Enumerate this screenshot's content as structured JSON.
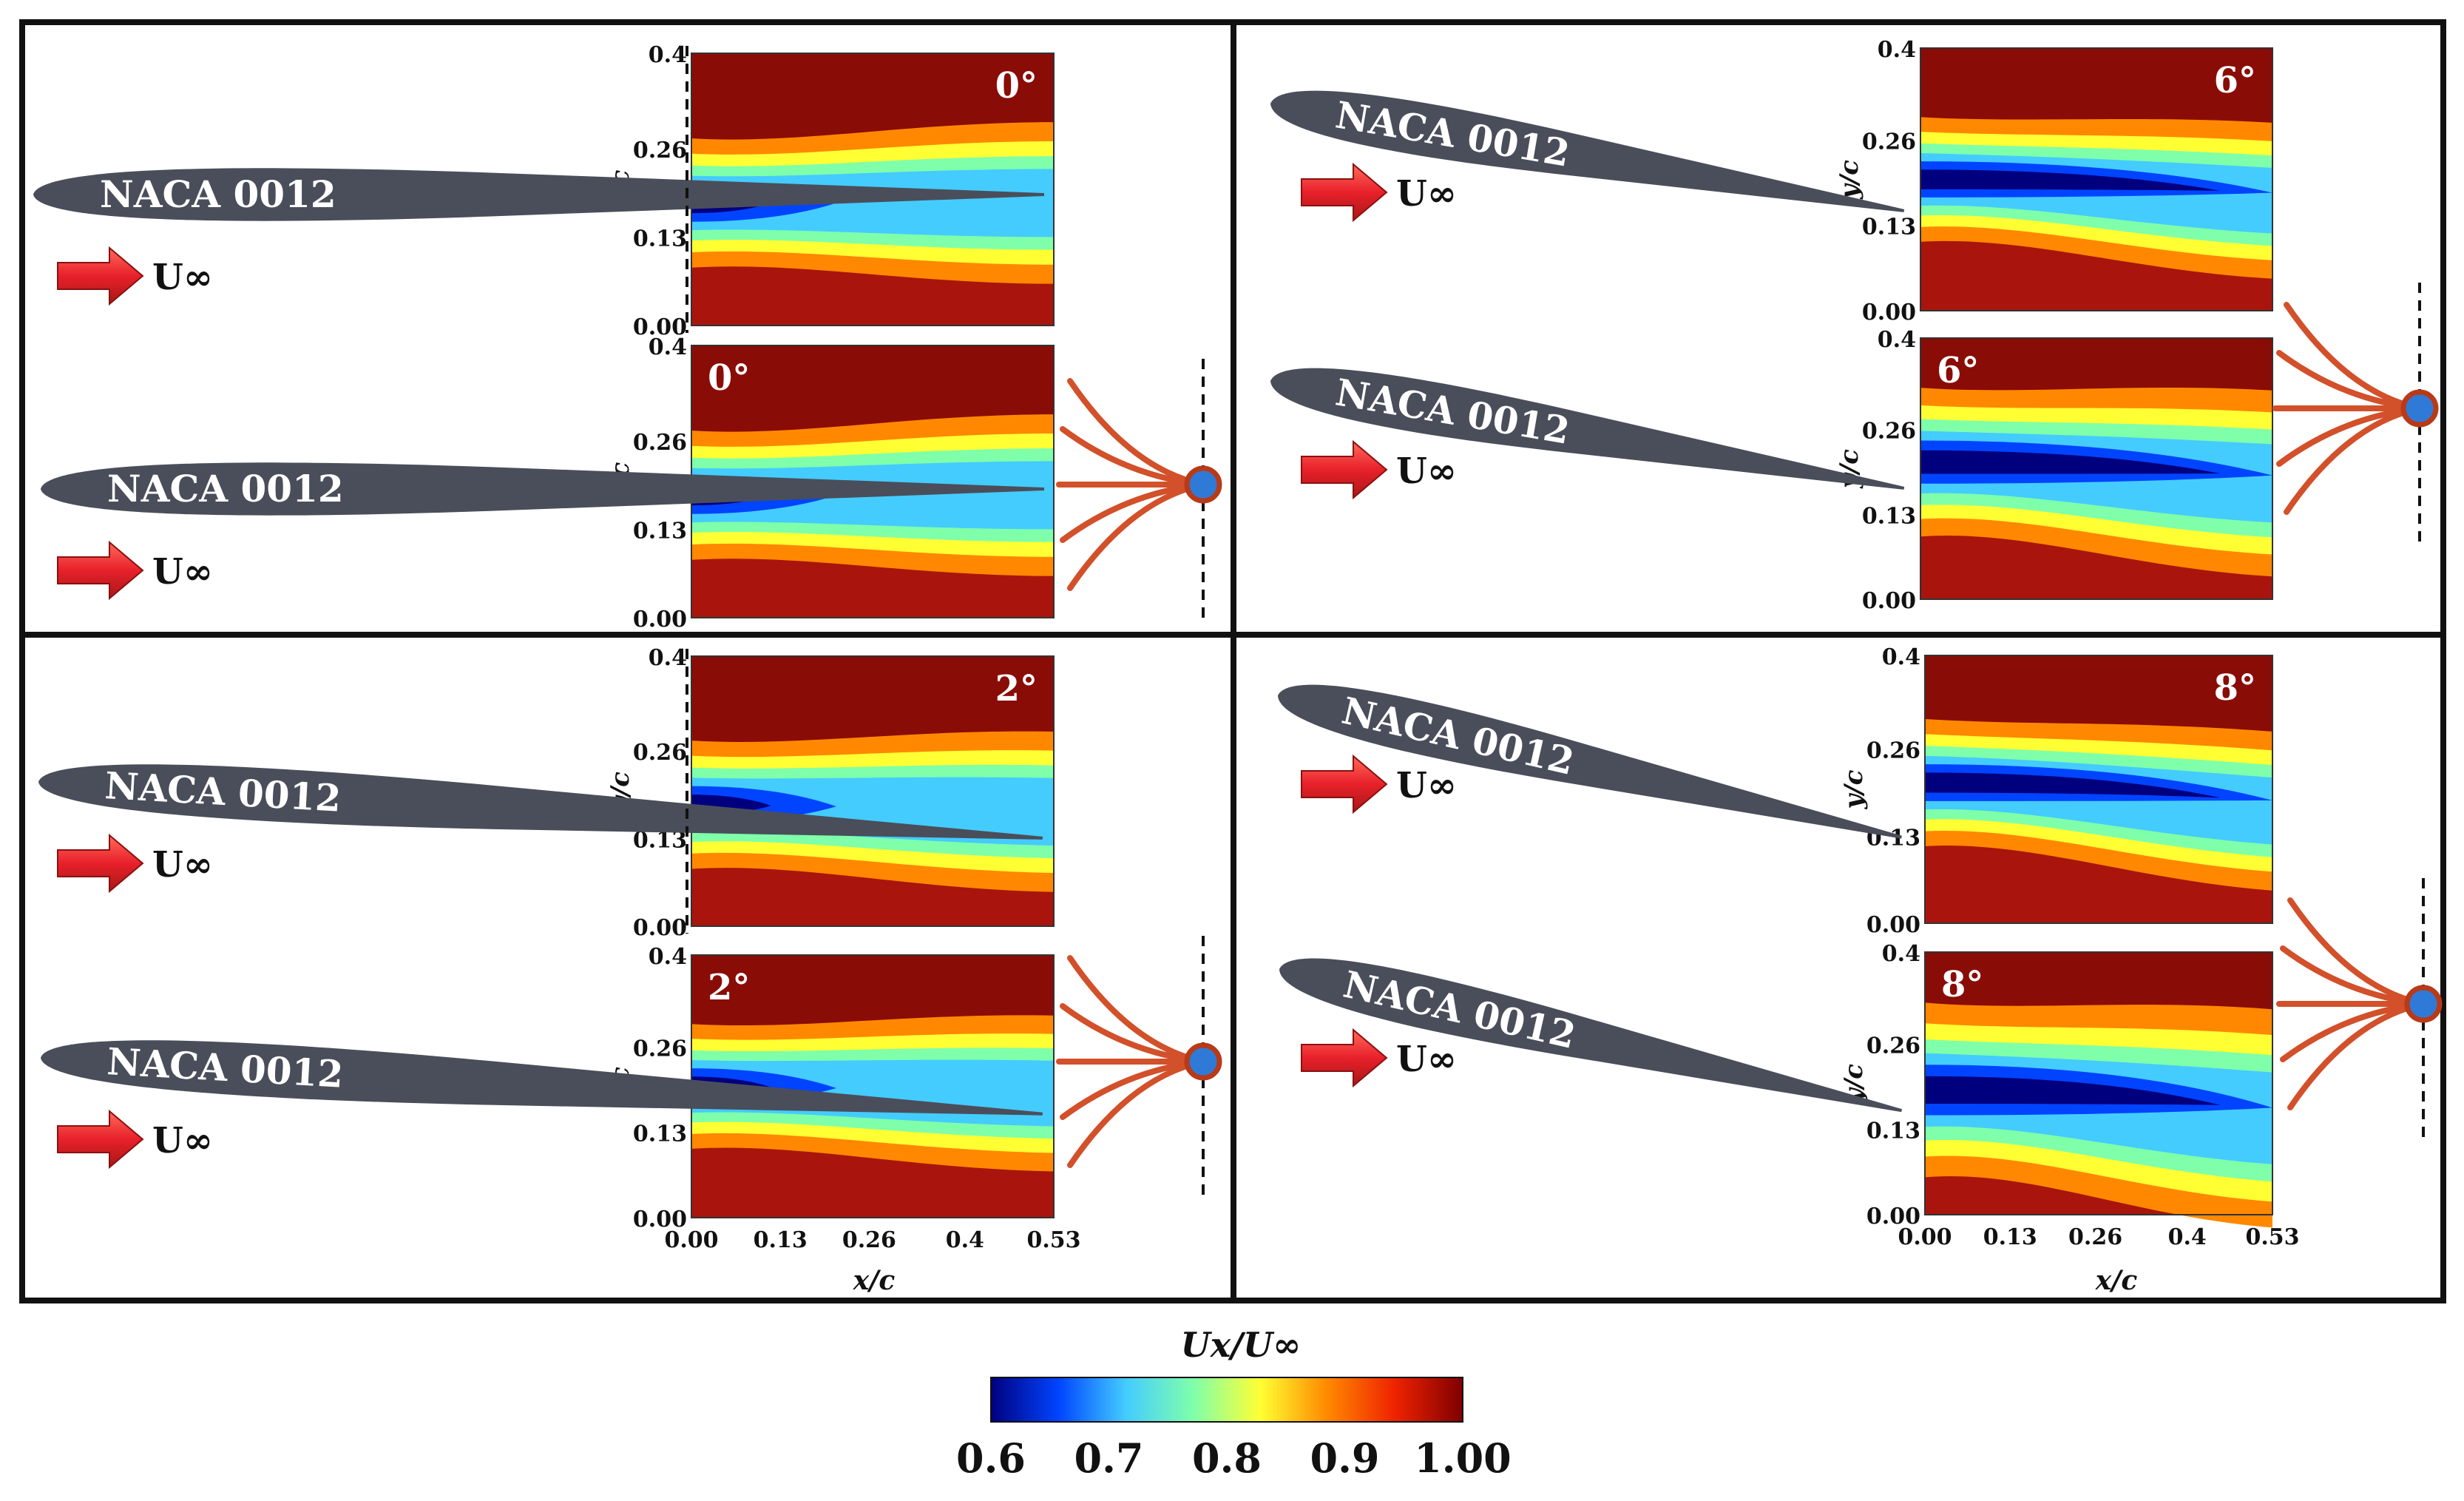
{
  "chart_data": {
    "type": "heatmap",
    "title": "",
    "xlabel": "x/c",
    "ylabel": "y/c",
    "airfoil_label": "NACA 0012",
    "freestream_label": "U∞",
    "x_ticks": [
      "0.00",
      "0.13",
      "0.26",
      "0.4",
      "0.53"
    ],
    "y_ticks": [
      "0.00",
      "0.13",
      "0.26",
      "0.4"
    ],
    "xlim": [
      0,
      0.53
    ],
    "ylim": [
      0,
      0.4
    ],
    "colorbar": {
      "label": "Ux/U∞",
      "range": [
        0.6,
        1.0
      ],
      "ticks": [
        "0.6",
        "0.7",
        "0.8",
        "0.9",
        "1.00"
      ],
      "colors": [
        "#00007f",
        "#0044ff",
        "#44ccff",
        "#7fffaa",
        "#ffff33",
        "#ff8800",
        "#ee2200",
        "#7f0000"
      ]
    },
    "panels": [
      {
        "angle_label": "0°",
        "angle": 0,
        "has_actuator": false,
        "wake_center_yc": 0.18,
        "wake_halfwidth_yc": 0.05,
        "min_velocity": 0.6
      },
      {
        "angle_label": "0°",
        "angle": 0,
        "has_actuator": true,
        "wake_center_yc": 0.18,
        "wake_halfwidth_yc": 0.05,
        "min_velocity": 0.6
      },
      {
        "angle_label": "6°",
        "angle": 6,
        "has_actuator": false,
        "wake_center_yc": 0.2,
        "wake_halfwidth_yc": 0.05,
        "min_velocity": 0.6
      },
      {
        "angle_label": "6°",
        "angle": 6,
        "has_actuator": true,
        "wake_center_yc": 0.21,
        "wake_halfwidth_yc": 0.06,
        "min_velocity": 0.6
      },
      {
        "angle_label": "2°",
        "angle": 2,
        "has_actuator": false,
        "wake_center_yc": 0.18,
        "wake_halfwidth_yc": 0.05,
        "min_velocity": 0.6
      },
      {
        "angle_label": "2°",
        "angle": 2,
        "has_actuator": true,
        "wake_center_yc": 0.2,
        "wake_halfwidth_yc": 0.05,
        "min_velocity": 0.6
      },
      {
        "angle_label": "8°",
        "angle": 8,
        "has_actuator": false,
        "wake_center_yc": 0.21,
        "wake_halfwidth_yc": 0.05,
        "min_velocity": 0.6
      },
      {
        "angle_label": "8°",
        "angle": 8,
        "has_actuator": true,
        "wake_center_yc": 0.19,
        "wake_halfwidth_yc": 0.07,
        "min_velocity": 0.6
      }
    ]
  }
}
